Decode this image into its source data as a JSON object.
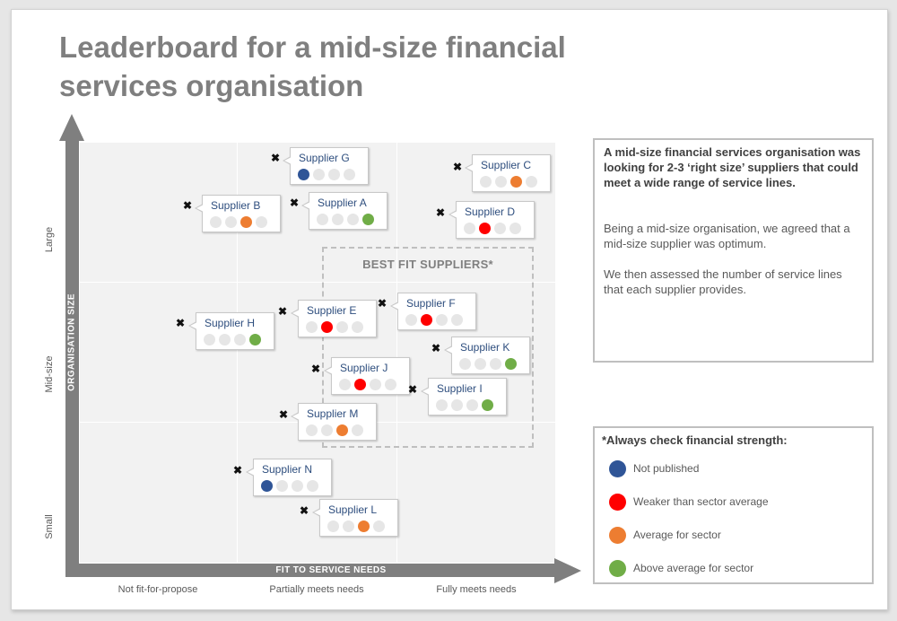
{
  "title": "Leaderboard for a mid-size financial services organisation",
  "axes": {
    "x_label": "FIT TO SERVICE NEEDS",
    "y_label": "ORGANISATION SIZE",
    "x_ticks": [
      "Not fit-for-propose",
      "Partially meets needs",
      "Fully meets needs"
    ],
    "y_ticks": [
      "Large",
      "Mid-size",
      "Small"
    ]
  },
  "best_fit_label": "BEST FIT SUPPLIERS*",
  "colors": {
    "not_published": "#2f5597",
    "weaker": "#ff0000",
    "average": "#ed7d31",
    "above": "#70ad47",
    "empty": "#e6e6e6"
  },
  "suppliers": [
    {
      "name": "Supplier G",
      "strength": 0
    },
    {
      "name": "Supplier C",
      "strength": 2
    },
    {
      "name": "Supplier B",
      "strength": 2
    },
    {
      "name": "Supplier A",
      "strength": 3
    },
    {
      "name": "Supplier D",
      "strength": 1
    },
    {
      "name": "Supplier F",
      "strength": 1
    },
    {
      "name": "Supplier E",
      "strength": 1
    },
    {
      "name": "Supplier H",
      "strength": 3
    },
    {
      "name": "Supplier K",
      "strength": 3
    },
    {
      "name": "Supplier J",
      "strength": 1
    },
    {
      "name": "Supplier I",
      "strength": 3
    },
    {
      "name": "Supplier M",
      "strength": 2
    },
    {
      "name": "Supplier N",
      "strength": 0
    },
    {
      "name": "Supplier L",
      "strength": 2
    }
  ],
  "info": {
    "bold": "A mid-size financial services organisation was looking for 2-3 ‘right size’ suppliers that could meet a wide range of service lines.",
    "p2": "Being a mid-size organisation, we agreed that a mid-size supplier was optimum.",
    "p3": "We then assessed the number of service lines that each supplier provides."
  },
  "legend": {
    "title": "*Always check financial strength:",
    "items": [
      "Not published",
      "Weaker than sector average",
      "Average for sector",
      "Above average for sector"
    ]
  }
}
